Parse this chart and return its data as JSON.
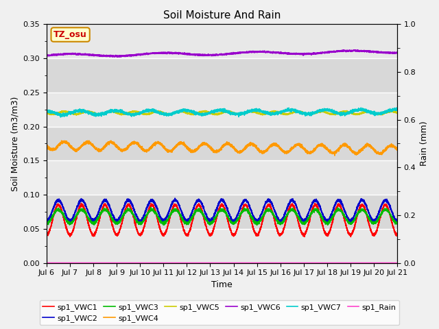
{
  "title": "Soil Moisture And Rain",
  "xlabel": "Time",
  "ylabel_left": "Soil Moisture (m3/m3)",
  "ylabel_right": "Rain (mm)",
  "station_label": "TZ_osu",
  "ylim_left": [
    0.0,
    0.35
  ],
  "ylim_right": [
    0.0,
    1.0
  ],
  "n_points": 5000,
  "series": {
    "sp1_VWC1": {
      "color": "#ff0000",
      "mean": 0.063,
      "amplitude": 0.022,
      "period": 1.0,
      "phase": 0.75,
      "trend": 0.0,
      "noise_std": 0.001
    },
    "sp1_VWC2": {
      "color": "#0000cc",
      "mean": 0.077,
      "amplitude": 0.015,
      "period": 1.0,
      "phase": 0.75,
      "trend": 0.0,
      "noise_std": 0.001
    },
    "sp1_VWC3": {
      "color": "#00bb00",
      "mean": 0.068,
      "amplitude": 0.01,
      "period": 1.0,
      "phase": 0.75,
      "trend": 0.0,
      "noise_std": 0.001
    },
    "sp1_VWC4": {
      "color": "#ff9900",
      "mean": 0.172,
      "amplitude": 0.006,
      "period": 1.0,
      "phase": 0.5,
      "trend": -0.006,
      "noise_std": 0.001
    },
    "sp1_VWC5": {
      "color": "#cccc00",
      "mean": 0.22,
      "amplitude": 0.002,
      "period": 1.0,
      "phase": 0.5,
      "trend": 0.0,
      "noise_std": 0.0005
    },
    "sp1_VWC6": {
      "color": "#9900cc",
      "mean": 0.304,
      "amplitude": 0.002,
      "period": 4.0,
      "phase": 0.0,
      "trend": 0.006,
      "noise_std": 0.0005
    },
    "sp1_VWC7": {
      "color": "#00cccc",
      "mean": 0.22,
      "amplitude": 0.003,
      "period": 1.5,
      "phase": 0.3,
      "trend": 0.002,
      "noise_std": 0.001
    },
    "sp1_Rain": {
      "color": "#ff44cc",
      "mean": 0.0,
      "amplitude": 0.0,
      "period": 1.0,
      "phase": 0.0,
      "trend": 0.0,
      "noise_std": 0.0
    }
  },
  "background_color": "#f0f0f0",
  "plot_bg_color": "#f0f0f0",
  "band_colors": [
    "#e8e8e8",
    "#d8d8d8"
  ],
  "tick_labels": [
    "Jul 6",
    "Jul 7",
    "Jul 8",
    "Jul 9",
    "Jul 10",
    "Jul 11",
    "Jul 12",
    "Jul 13",
    "Jul 14",
    "Jul 15",
    "Jul 16",
    "Jul 17",
    "Jul 18",
    "Jul 19",
    "Jul 20",
    "Jul 21"
  ],
  "tick_positions": [
    0,
    1,
    2,
    3,
    4,
    5,
    6,
    7,
    8,
    9,
    10,
    11,
    12,
    13,
    14,
    15
  ]
}
